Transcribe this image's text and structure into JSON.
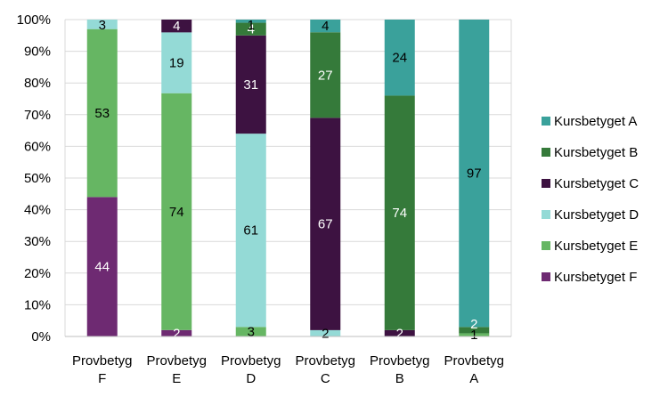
{
  "chart_data": {
    "type": "bar",
    "stacked": "percent",
    "categories": [
      [
        "Provbetyg",
        "F"
      ],
      [
        "Provbetyg",
        "E"
      ],
      [
        "Provbetyg",
        "D"
      ],
      [
        "Provbetyg",
        "C"
      ],
      [
        "Provbetyg",
        "B"
      ],
      [
        "Provbetyg",
        "A"
      ]
    ],
    "series": [
      {
        "name": "Kursbetyget F",
        "color": "#6e2a72",
        "label_color": "#ffffff",
        "values": [
          44,
          2,
          0,
          0,
          0,
          0
        ]
      },
      {
        "name": "Kursbetyget E",
        "color": "#66b663",
        "label_color": "#000000",
        "values": [
          53,
          74,
          3,
          0,
          0,
          1
        ]
      },
      {
        "name": "Kursbetyget D",
        "color": "#94dad6",
        "label_color": "#000000",
        "values": [
          3,
          19,
          61,
          2,
          0,
          0
        ]
      },
      {
        "name": "Kursbetyget C",
        "color": "#3d1241",
        "label_color": "#ffffff",
        "values": [
          0,
          4,
          31,
          67,
          2,
          0
        ]
      },
      {
        "name": "Kursbetyget B",
        "color": "#357a3a",
        "label_color": "#ffffff",
        "values": [
          0,
          0,
          4,
          27,
          74,
          2
        ]
      },
      {
        "name": "Kursbetyget A",
        "color": "#3aa19b",
        "label_color": "#000000",
        "values": [
          0,
          0,
          1,
          4,
          24,
          97
        ]
      }
    ],
    "y_ticks": [
      "0%",
      "10%",
      "20%",
      "30%",
      "40%",
      "50%",
      "60%",
      "70%",
      "80%",
      "90%",
      "100%"
    ],
    "ylim": [
      0,
      100
    ],
    "legend_position": "right",
    "legend_order": "reverse",
    "grid": true
  }
}
